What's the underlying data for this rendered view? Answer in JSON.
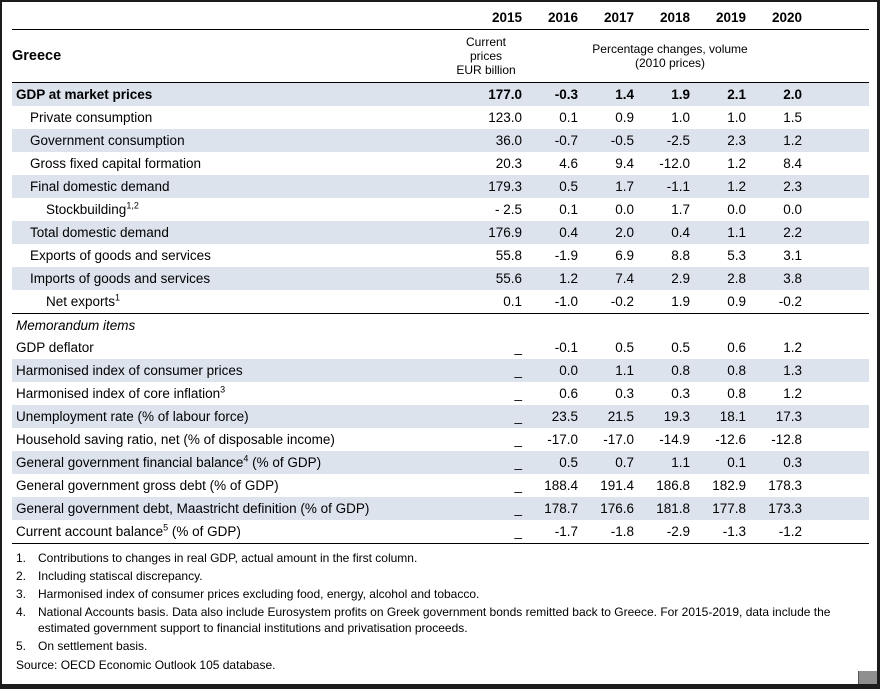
{
  "page": {
    "region_title": "Greece",
    "col_headers": [
      "2015",
      "2016",
      "2017",
      "2018",
      "2019",
      "2020"
    ],
    "unit_col_2015": "Current\nprices\nEUR billion",
    "unit_cols_rest": "Percentage changes, volume\n(2010 prices)",
    "memo_header": "Memorandum items",
    "rows": [
      {
        "pre": "GDP at market prices",
        "sup": "",
        "post": "",
        "bold": true,
        "indent": 0,
        "shaded": true,
        "values": [
          "177.0",
          "-0.3",
          "1.4",
          "1.9",
          "2.1",
          "2.0"
        ]
      },
      {
        "pre": "Private consumption",
        "sup": "",
        "post": "",
        "bold": false,
        "indent": 1,
        "shaded": false,
        "values": [
          "123.0",
          "0.1",
          "0.9",
          "1.0",
          "1.0",
          "1.5"
        ]
      },
      {
        "pre": "Government consumption",
        "sup": "",
        "post": "",
        "bold": false,
        "indent": 1,
        "shaded": true,
        "values": [
          "36.0",
          "-0.7",
          "-0.5",
          "-2.5",
          "2.3",
          "1.2"
        ]
      },
      {
        "pre": "Gross fixed capital formation",
        "sup": "",
        "post": "",
        "bold": false,
        "indent": 1,
        "shaded": false,
        "values": [
          "20.3",
          "4.6",
          "9.4",
          "-12.0",
          "1.2",
          "8.4"
        ]
      },
      {
        "pre": "Final domestic demand",
        "sup": "",
        "post": "",
        "bold": false,
        "indent": 1,
        "shaded": true,
        "values": [
          "179.3",
          "0.5",
          "1.7",
          "-1.1",
          "1.2",
          "2.3"
        ]
      },
      {
        "pre": "Stockbuilding",
        "sup": "1,2",
        "post": "",
        "bold": false,
        "indent": 2,
        "shaded": false,
        "values": [
          "- 2.5",
          "0.1",
          "0.0",
          "1.7",
          "0.0",
          "0.0"
        ]
      },
      {
        "pre": "Total domestic demand",
        "sup": "",
        "post": "",
        "bold": false,
        "indent": 1,
        "shaded": true,
        "values": [
          "176.9",
          "0.4",
          "2.0",
          "0.4",
          "1.1",
          "2.2"
        ]
      },
      {
        "pre": "Exports of goods and services",
        "sup": "",
        "post": "",
        "bold": false,
        "indent": 1,
        "shaded": false,
        "values": [
          "55.8",
          "-1.9",
          "6.9",
          "8.8",
          "5.3",
          "3.1"
        ]
      },
      {
        "pre": "Imports of goods and services",
        "sup": "",
        "post": "",
        "bold": false,
        "indent": 1,
        "shaded": true,
        "values": [
          "55.6",
          "1.2",
          "7.4",
          "2.9",
          "2.8",
          "3.8"
        ]
      },
      {
        "pre": "Net exports",
        "sup": "1",
        "post": "",
        "bold": false,
        "indent": 2,
        "shaded": false,
        "values": [
          "0.1",
          "-1.0",
          "-0.2",
          "1.9",
          "0.9",
          "-0.2"
        ]
      }
    ],
    "memo_rows": [
      {
        "pre": "GDP deflator",
        "sup": "",
        "post": "",
        "bold": false,
        "indent": 0,
        "shaded": false,
        "values": [
          "_",
          "-0.1",
          "0.5",
          "0.5",
          "0.6",
          "1.2"
        ]
      },
      {
        "pre": "Harmonised index of consumer prices",
        "sup": "",
        "post": "",
        "bold": false,
        "indent": 0,
        "shaded": true,
        "values": [
          "_",
          "0.0",
          "1.1",
          "0.8",
          "0.8",
          "1.3"
        ]
      },
      {
        "pre": "Harmonised index of core inflation",
        "sup": "3",
        "post": "",
        "bold": false,
        "indent": 0,
        "shaded": false,
        "values": [
          "_",
          "0.6",
          "0.3",
          "0.3",
          "0.8",
          "1.2"
        ]
      },
      {
        "pre": "Unemployment rate (% of labour force)",
        "sup": "",
        "post": "",
        "bold": false,
        "indent": 0,
        "shaded": true,
        "values": [
          "_",
          "23.5",
          "21.5",
          "19.3",
          "18.1",
          "17.3"
        ]
      },
      {
        "pre": "Household saving ratio, net (% of disposable income)",
        "sup": "",
        "post": "",
        "bold": false,
        "indent": 0,
        "shaded": false,
        "values": [
          "_",
          "-17.0",
          "-17.0",
          "-14.9",
          "-12.6",
          "-12.8"
        ]
      },
      {
        "pre": "General government financial balance",
        "sup": "4",
        "post": " (% of GDP)",
        "bold": false,
        "indent": 0,
        "shaded": true,
        "values": [
          "_",
          "0.5",
          "0.7",
          "1.1",
          "0.1",
          "0.3"
        ]
      },
      {
        "pre": "General government gross debt (% of GDP)",
        "sup": "",
        "post": "",
        "bold": false,
        "indent": 0,
        "shaded": false,
        "values": [
          "_",
          "188.4",
          "191.4",
          "186.8",
          "182.9",
          "178.3"
        ]
      },
      {
        "pre": "General government debt, Maastricht definition (% of GDP)",
        "sup": "",
        "post": "",
        "bold": false,
        "indent": 0,
        "shaded": true,
        "values": [
          "_",
          "178.7",
          "176.6",
          "181.8",
          "177.8",
          "173.3"
        ]
      },
      {
        "pre": "Current account balance",
        "sup": "5",
        "post": " (% of GDP)",
        "bold": false,
        "indent": 0,
        "shaded": false,
        "values": [
          "_",
          "-1.7",
          "-1.8",
          "-2.9",
          "-1.3",
          "-1.2"
        ]
      }
    ],
    "footnotes": [
      {
        "num": "1.",
        "text": "Contributions to changes in real GDP, actual amount in the first column."
      },
      {
        "num": "2.",
        "text": "Including statiscal discrepancy."
      },
      {
        "num": "3.",
        "text": "Harmonised index of consumer prices excluding food, energy, alcohol and tobacco."
      },
      {
        "num": "4.",
        "text": "National Accounts basis. Data also include Eurosystem profits on Greek government bonds remitted back to Greece. For 2015-2019, data include the estimated government support to financial institutions and privatisation proceeds."
      },
      {
        "num": "5.",
        "text": "On settlement basis."
      }
    ],
    "source": "Source: OECD Economic Outlook 105 database.",
    "colors": {
      "row_shade": "#dce3ed",
      "rule": "#000000",
      "text": "#000000"
    }
  }
}
